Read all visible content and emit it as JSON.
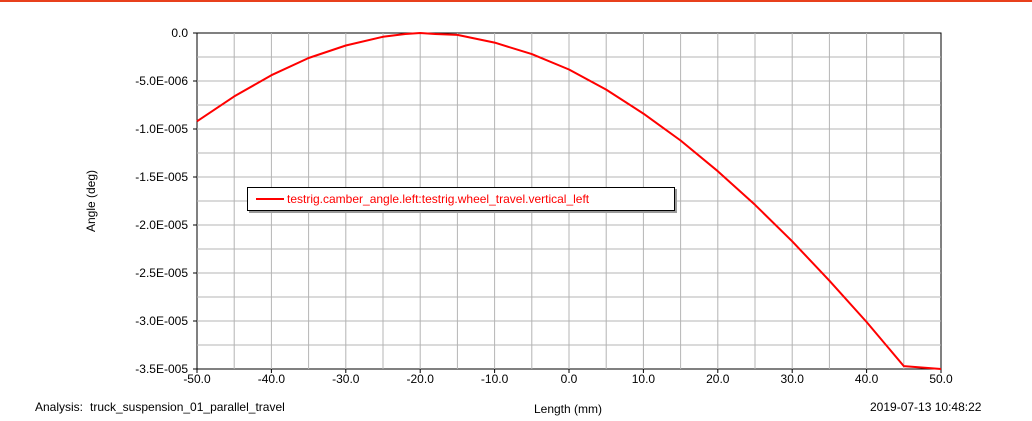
{
  "footer": {
    "analysis_label": "Analysis:",
    "analysis_name": "truck_suspension_01_parallel_travel",
    "timestamp": "2019-07-13 10:48:22"
  },
  "colors": {
    "series": "#ff0000",
    "grid": "#b4b4b4",
    "top_rule": "#e8401c"
  },
  "chart_data": {
    "type": "line",
    "xlabel": "Length (mm)",
    "ylabel": "Angle (deg)",
    "xlim": [
      -50,
      50
    ],
    "ylim": [
      -3.5e-05,
      0
    ],
    "x_ticks": [
      -50,
      -40,
      -30,
      -20,
      -10,
      0,
      10,
      20,
      30,
      40,
      50
    ],
    "x_tick_labels": [
      "-50.0",
      "-40.0",
      "-30.0",
      "-20.0",
      "-10.0",
      "0.0",
      "10.0",
      "20.0",
      "30.0",
      "40.0",
      "50.0"
    ],
    "y_ticks": [
      0,
      -5e-06,
      -1e-05,
      -1.5e-05,
      -2e-05,
      -2.5e-05,
      -3e-05,
      -3.5e-05
    ],
    "y_tick_labels": [
      "0.0",
      "-5.0E-006",
      "-1.0E-005",
      "-1.5E-005",
      "-2.0E-005",
      "-2.5E-005",
      "-3.0E-005",
      "-3.5E-005"
    ],
    "grid": true,
    "legend_position": "center-left",
    "series": [
      {
        "name": "testrig.camber_angle.left:testrig.wheel_travel.vertical_left",
        "x": [
          -50,
          -45,
          -40,
          -35,
          -30,
          -25,
          -22,
          -20,
          -18,
          -15,
          -10,
          -5,
          0,
          5,
          10,
          15,
          20,
          25,
          30,
          35,
          40,
          45,
          50
        ],
        "y": [
          -9.2e-06,
          -6.6e-06,
          -4.4e-06,
          -2.6e-06,
          -1.3e-06,
          -4e-07,
          -1e-07,
          0,
          -1e-07,
          -2e-07,
          -1e-06,
          -2.2e-06,
          -3.8e-06,
          -5.9e-06,
          -8.4e-06,
          -1.12e-05,
          -1.44e-05,
          -1.79e-05,
          -2.17e-05,
          -2.58e-05,
          -3.01e-05,
          -3.47e-05,
          -3.5e-05
        ]
      }
    ]
  }
}
